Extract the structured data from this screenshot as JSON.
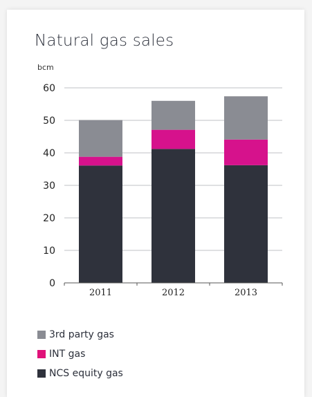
{
  "chart_data": {
    "type": "bar",
    "stacked": true,
    "title": "Natural gas sales",
    "ylabel": "bcm",
    "xlabel": "",
    "ylim": [
      0,
      60
    ],
    "yticks": [
      "0",
      "10",
      "20",
      "30",
      "40",
      "50",
      "60"
    ],
    "grid": true,
    "legend_position": "bottom-left",
    "categories": [
      "2011",
      "2012",
      "2013"
    ],
    "series": [
      {
        "name": "NCS equity gas",
        "color": "#2f323c",
        "values": [
          36.1,
          41.2,
          36.2
        ]
      },
      {
        "name": "INT gas",
        "color": "#d6128c",
        "values": [
          2.7,
          5.9,
          7.9
        ]
      },
      {
        "name": "3rd party gas",
        "color": "#8a8c93",
        "values": [
          11.3,
          8.9,
          13.3
        ]
      }
    ],
    "legend_order": [
      "3rd party gas",
      "INT gas",
      "NCS equity gas"
    ],
    "legend_colors": {
      "3rd party gas": "#8a8c93",
      "INT gas": "#e0127a",
      "NCS equity gas": "#2f323c"
    }
  }
}
